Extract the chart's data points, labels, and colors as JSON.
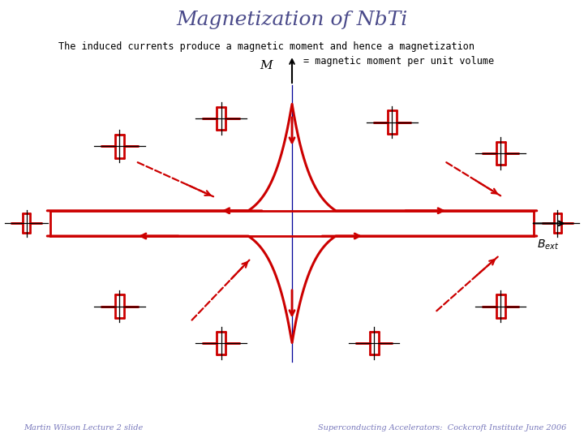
{
  "title": "Magnetization of NbTi",
  "subtitle1": "The induced currents produce a magnetic moment and hence a magnetization",
  "subtitle2": "= magnetic moment per unit volume",
  "footer_left": "Martin Wilson Lecture 2 slide",
  "footer_right": "Superconducting Accelerators:  Cockcroft Institute June 2006",
  "main_color": "#cc0000",
  "blue_color": "#000099",
  "black_color": "#000000",
  "bg_color": "#ffffff",
  "title_color": "#4a4a8a"
}
